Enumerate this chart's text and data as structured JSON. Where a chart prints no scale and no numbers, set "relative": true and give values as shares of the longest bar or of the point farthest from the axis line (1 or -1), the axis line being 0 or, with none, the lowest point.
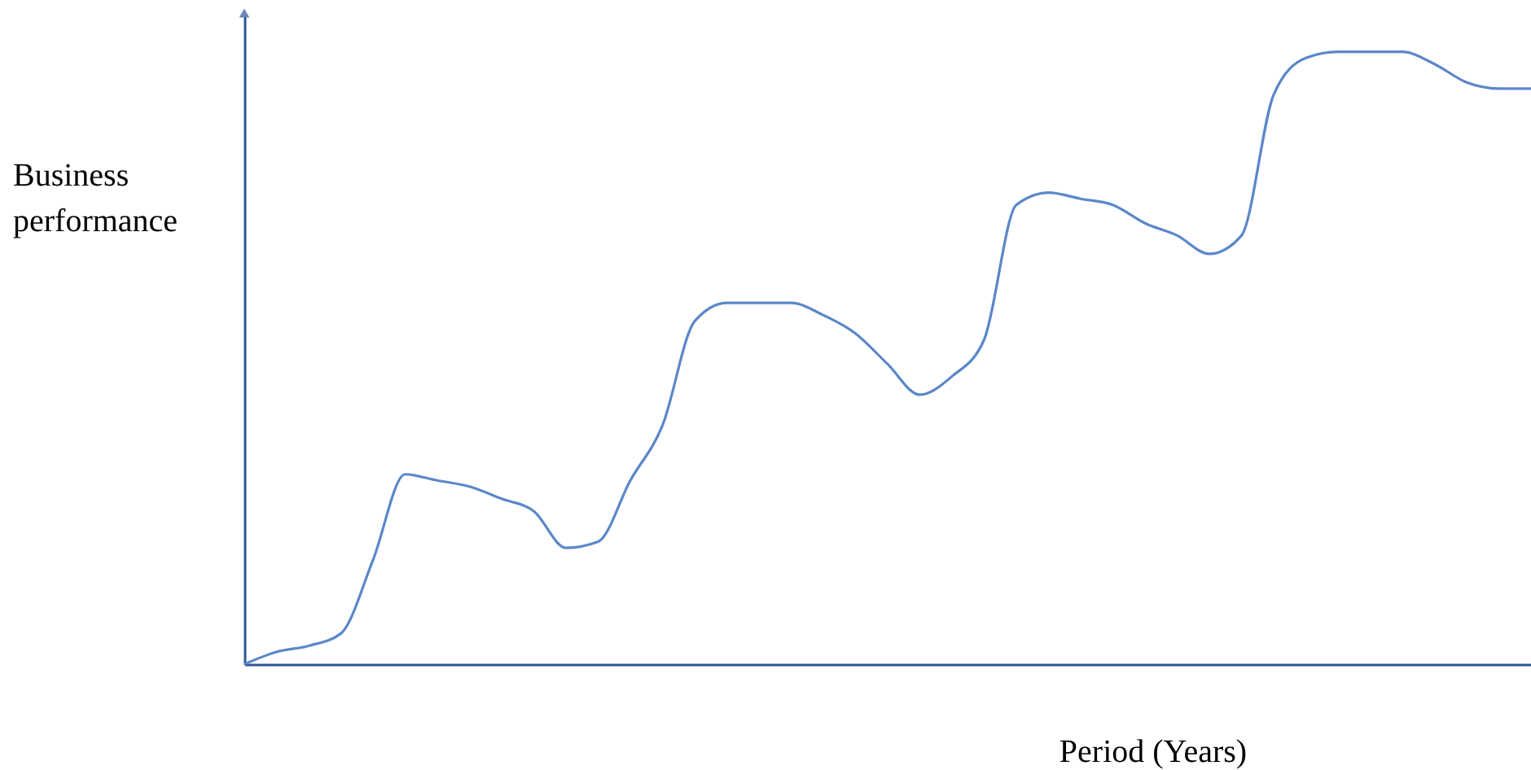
{
  "chart_data": {
    "type": "line",
    "relative": true,
    "xlabel": "Period (Years)",
    "ylabel": "Business performance",
    "categories": [
      null,
      null,
      null,
      null,
      null,
      null,
      null,
      null,
      null,
      null,
      null,
      null,
      null,
      null,
      null,
      null,
      null,
      null,
      null,
      null,
      null,
      null,
      null,
      null,
      null,
      null,
      null,
      null,
      null,
      null,
      null,
      null,
      null,
      null,
      null,
      null,
      null,
      null,
      null,
      null,
      null
    ],
    "series": [
      {
        "color": "#5b87c9",
        "values": [
          0,
          0.02,
          0.03,
          0.05,
          0.17,
          0.31,
          0.3,
          0.29,
          0.27,
          0.25,
          0.19,
          0.2,
          0.3,
          0.39,
          0.56,
          0.59,
          0.59,
          0.59,
          0.57,
          0.54,
          0.49,
          0.44,
          0.47,
          0.53,
          0.75,
          0.77,
          0.76,
          0.75,
          0.72,
          0.7,
          0.67,
          0.7,
          0.93,
          0.99,
          1,
          1,
          1,
          0.98,
          0.95,
          0.94,
          0.94
        ]
      }
    ],
    "tick_labels": false,
    "grid": false,
    "marker": "none",
    "line_style": "solid"
  }
}
